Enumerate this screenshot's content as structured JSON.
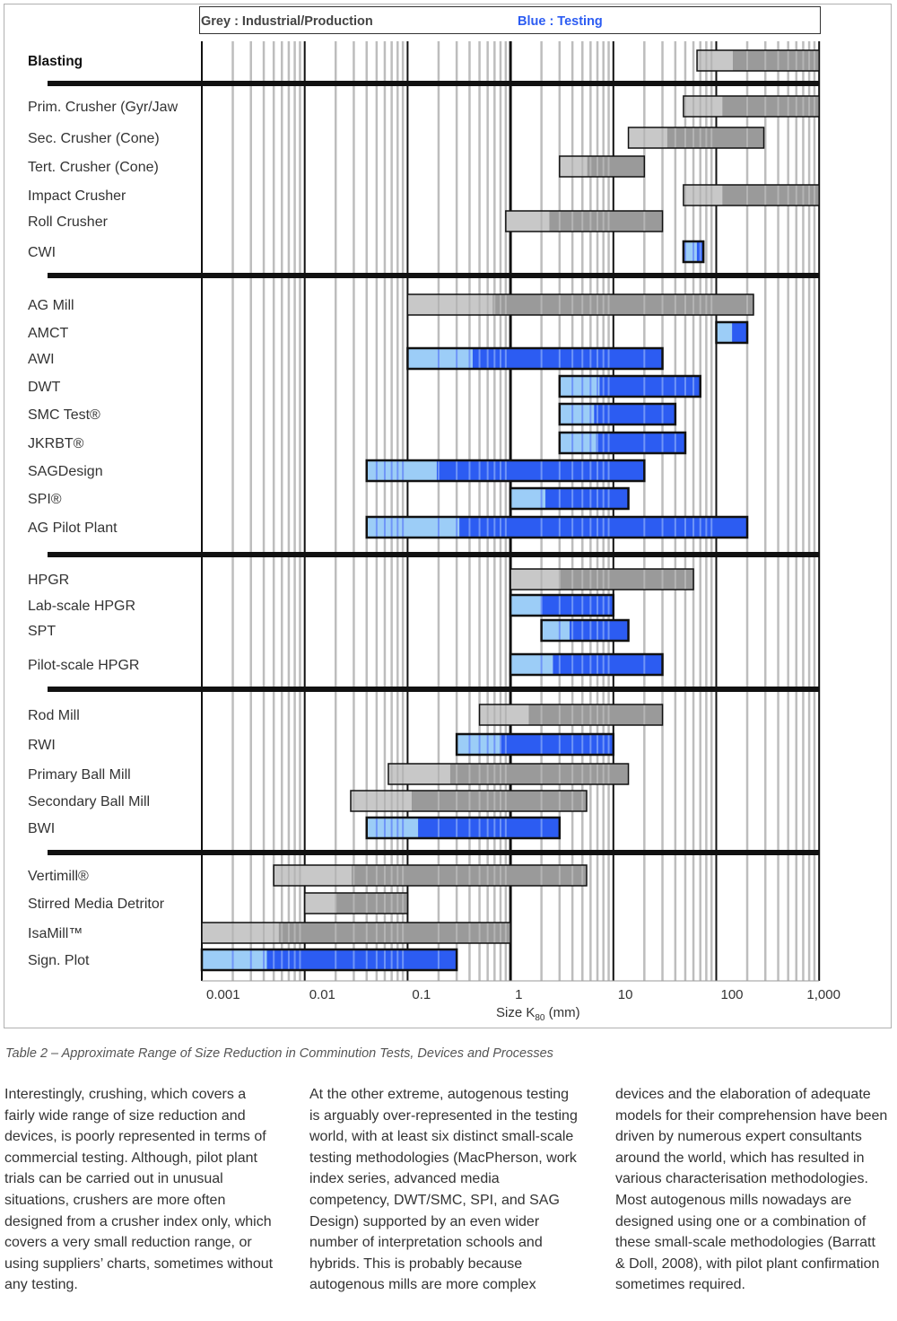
{
  "chart_data": {
    "type": "range-bar",
    "legend": {
      "grey": "Grey : Industrial/Production",
      "blue": "Blue : Testing"
    },
    "xlabel": "Size K80 (mm)",
    "xlabel_main": "Size K",
    "xlabel_sub": "80",
    "xlabel_unit": "(mm)",
    "xscale": "log",
    "xlim": [
      0.001,
      1000
    ],
    "xticks": [
      {
        "value": 0.001,
        "label": "0.001"
      },
      {
        "value": 0.01,
        "label": "0.01"
      },
      {
        "value": 0.1,
        "label": "0.1"
      },
      {
        "value": 1,
        "label": "1"
      },
      {
        "value": 10,
        "label": "10"
      },
      {
        "value": 100,
        "label": "100"
      },
      {
        "value": 1000,
        "label": "1,000"
      }
    ],
    "grid": true,
    "colors": {
      "grey_light": "#c8c8c8",
      "grey_dark": "#9a9a9a",
      "blue_light": "#9ccdf7",
      "blue_dark": "#2c5cf2"
    },
    "groups": [
      {
        "rows": [
          {
            "label": "Blasting",
            "bold": true,
            "kind": "grey",
            "min": 65,
            "max": 1000
          }
        ]
      },
      {
        "rows": [
          {
            "label": "Prim. Crusher (Gyr/Jaw",
            "kind": "grey",
            "min": 48,
            "max": 1000
          },
          {
            "label": "Sec. Crusher (Cone)",
            "kind": "grey",
            "min": 14,
            "max": 290
          },
          {
            "label": "Tert. Crusher (Cone)",
            "kind": "grey",
            "min": 3,
            "max": 20
          },
          {
            "label": "Impact Crusher",
            "kind": "grey",
            "min": 48,
            "max": 1000
          },
          {
            "label": "Roll Crusher",
            "kind": "grey",
            "min": 0.9,
            "max": 30
          },
          {
            "label": "CWI",
            "kind": "blue",
            "min": 48,
            "max": 75
          }
        ]
      },
      {
        "rows": [
          {
            "label": "AG Mill",
            "kind": "grey",
            "min": 0.1,
            "max": 230
          },
          {
            "label": "AMCT",
            "kind": "blue",
            "min": 100,
            "max": 200
          },
          {
            "label": "AWI",
            "kind": "blue",
            "min": 0.1,
            "max": 30
          },
          {
            "label": "DWT",
            "kind": "blue",
            "min": 3,
            "max": 70
          },
          {
            "label": "SMC Test®",
            "kind": "blue",
            "min": 3,
            "max": 40
          },
          {
            "label": "JKRBT®",
            "kind": "blue",
            "min": 3,
            "max": 50
          },
          {
            "label": "SAGDesign",
            "kind": "blue",
            "min": 0.04,
            "max": 20
          },
          {
            "label": "SPI®",
            "kind": "blue",
            "min": 1,
            "max": 14
          },
          {
            "label": "AG Pilot Plant",
            "kind": "blue",
            "min": 0.04,
            "max": 200
          }
        ]
      },
      {
        "rows": [
          {
            "label": "HPGR",
            "kind": "grey",
            "min": 1,
            "max": 60
          },
          {
            "label": "Lab-scale HPGR",
            "kind": "blue",
            "min": 1,
            "max": 10
          },
          {
            "label": "SPT",
            "kind": "blue",
            "min": 2,
            "max": 14
          },
          {
            "label": "Pilot-scale HPGR",
            "kind": "blue",
            "min": 1,
            "max": 30
          }
        ]
      },
      {
        "rows": [
          {
            "label": "Rod Mill",
            "kind": "grey",
            "min": 0.5,
            "max": 30
          },
          {
            "label": "RWI",
            "kind": "blue",
            "min": 0.3,
            "max": 10
          },
          {
            "label": "Primary Ball Mill",
            "kind": "grey",
            "min": 0.065,
            "max": 14
          },
          {
            "label": "Secondary Ball Mill",
            "kind": "grey",
            "min": 0.028,
            "max": 5.5
          },
          {
            "label": "BWI",
            "kind": "blue",
            "min": 0.04,
            "max": 3
          }
        ]
      },
      {
        "rows": [
          {
            "label": "Vertimill®",
            "kind": "grey",
            "min": 0.005,
            "max": 5.5
          },
          {
            "label": "Stirred Media Detritor",
            "kind": "grey",
            "min": 0.01,
            "max": 0.1
          },
          {
            "label": "IsaMill™",
            "kind": "grey",
            "min": 0.001,
            "max": 1
          },
          {
            "label": "Sign. Plot",
            "kind": "blue",
            "min": 0.001,
            "max": 0.3
          }
        ]
      }
    ]
  },
  "caption": "Table 2 – Approximate Range of Size Reduction in Comminution Tests, Devices and Processes",
  "body_text": {
    "col1": "Interestingly, crushing, which covers a fairly wide range of size reduction and devices, is poorly represented in terms of commercial testing. Although, pilot plant trials can be carried out in unusual situations, crushers are more often designed from a crusher index only, which covers a very small reduction range, or using suppliers’ charts, sometimes without any testing.",
    "col2": "At the other extreme, autogenous testing is arguably over-represented in the testing world, with at least six distinct small-scale testing methodologies (MacPherson, work index series, advanced media competency, DWT/SMC, SPI, and SAG Design) supported by an even wider number of interpretation schools and hybrids. This is probably because autogenous mills are more complex",
    "col3": "devices and the elaboration of adequate models for their comprehension have been driven by numerous expert consultants around the world, which has resulted in various characterisation methodologies. Most autogenous mills nowadays are designed using one or a combination of these small-scale methodologies (Barratt & Doll, 2008), with pilot plant confirmation sometimes required."
  }
}
